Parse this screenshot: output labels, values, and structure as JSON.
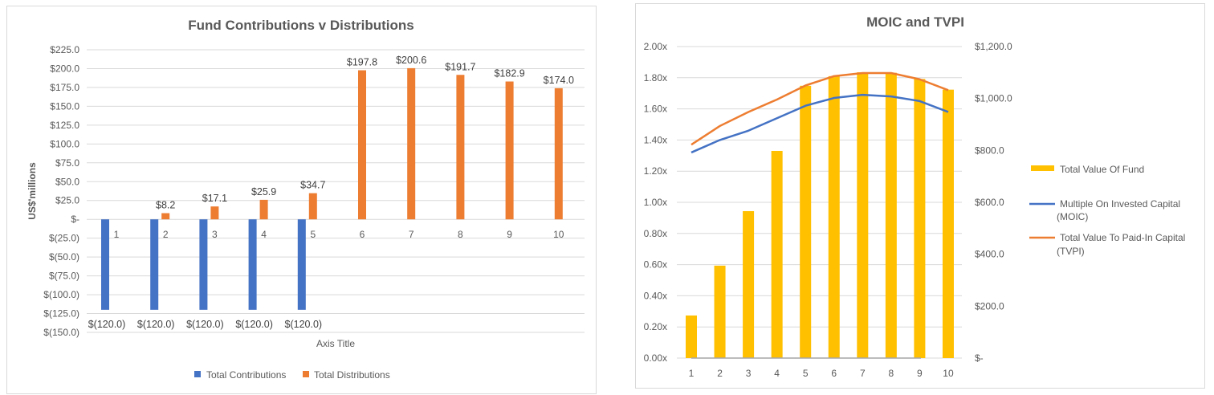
{
  "colors": {
    "contributions": "#4472C4",
    "distributions": "#ED7D31",
    "total_value": "#FFC000",
    "moic": "#4472C4",
    "tvpi": "#ED7D31",
    "grid": "#D9D9D9",
    "baseline": "#A6A6A6"
  },
  "chart_data": [
    {
      "type": "bar",
      "title": "Fund Contributions v Distributions",
      "xlabel": "Axis Title",
      "ylabel": "US$'millions",
      "categories": [
        "1",
        "2",
        "3",
        "4",
        "5",
        "6",
        "7",
        "8",
        "9",
        "10"
      ],
      "ylim": [
        -150,
        225
      ],
      "yticks": [
        225,
        200,
        175,
        150,
        125,
        100,
        75,
        50,
        25,
        0,
        -25,
        -50,
        -75,
        -100,
        -125,
        -150
      ],
      "ytick_labels": [
        "$225.0",
        "$200.0",
        "$175.0",
        "$150.0",
        "$125.0",
        "$100.0",
        "$75.0",
        "$50.0",
        "$25.0",
        "$-",
        "$(25.0)",
        "$(50.0)",
        "$(75.0)",
        "$(100.0)",
        "$(125.0)",
        "$(150.0)"
      ],
      "grid": true,
      "legend": "bottom",
      "series": [
        {
          "name": "Total Contributions",
          "values": [
            -120,
            -120,
            -120,
            -120,
            -120,
            null,
            null,
            null,
            null,
            null
          ],
          "labels": [
            "$(120.0)",
            "$(120.0)",
            "$(120.0)",
            "$(120.0)",
            "$(120.0)"
          ]
        },
        {
          "name": "Total Distributions",
          "values": [
            null,
            8.2,
            17.1,
            25.9,
            34.7,
            197.8,
            200.6,
            191.7,
            182.9,
            174.0
          ],
          "labels": [
            "",
            "$8.2",
            "$17.1",
            "$25.9",
            "$34.7",
            "$197.8",
            "$200.6",
            "$191.7",
            "$182.9",
            "$174.0"
          ]
        }
      ]
    },
    {
      "type": "bar+line",
      "title": "MOIC and TVPI",
      "categories": [
        "1",
        "2",
        "3",
        "4",
        "5",
        "6",
        "7",
        "8",
        "9",
        "10"
      ],
      "y_left": {
        "range": [
          0,
          2.0
        ],
        "tick_labels": [
          "2.00x",
          "1.80x",
          "1.60x",
          "1.40x",
          "1.20x",
          "1.00x",
          "0.80x",
          "0.60x",
          "0.40x",
          "0.20x",
          "0.00x"
        ]
      },
      "y_right": {
        "range": [
          0,
          1200
        ],
        "tick_labels": [
          "$1,200.0",
          "$1,000.0",
          "$800.0",
          "$600.0",
          "$400.0",
          "$200.0",
          "$-"
        ]
      },
      "grid": true,
      "legend": "right",
      "series": [
        {
          "name": "Total Value Of Fund",
          "type": "bar",
          "axis": "right",
          "values": [
            164,
            356,
            566,
            798,
            1049,
            1086,
            1101,
            1099,
            1075,
            1034
          ]
        },
        {
          "name": "Multiple On Invested Capital (MOIC)",
          "type": "line",
          "axis": "left",
          "values": [
            1.32,
            1.4,
            1.46,
            1.54,
            1.62,
            1.67,
            1.69,
            1.68,
            1.65,
            1.58
          ]
        },
        {
          "name": "Total Value To Paid-In Capital (TVPI)",
          "type": "line",
          "axis": "left",
          "values": [
            1.37,
            1.49,
            1.58,
            1.66,
            1.75,
            1.81,
            1.83,
            1.83,
            1.79,
            1.72
          ]
        }
      ],
      "legend_lines": [
        [
          "Total Value Of Fund"
        ],
        [
          "Multiple On Invested Capital",
          "(MOIC)"
        ],
        [
          "Total Value To Paid-In Capital",
          "(TVPI)"
        ]
      ]
    }
  ]
}
